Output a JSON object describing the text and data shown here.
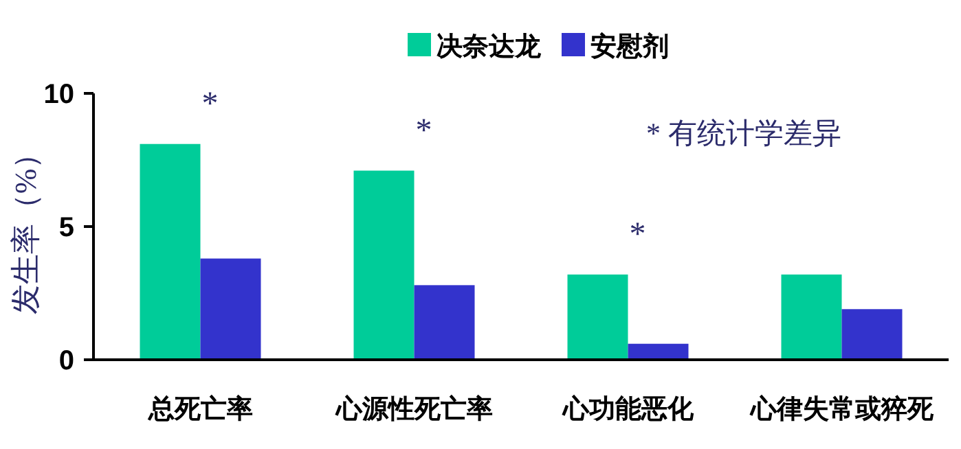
{
  "chart_data": {
    "type": "bar",
    "ylabel": "发生率（%）",
    "categories": [
      "总死亡率",
      "心源性死亡率",
      "心功能恶化",
      "心律失常或猝死"
    ],
    "series": [
      {
        "name": "决奈达龙",
        "color": "#00cc99",
        "values": [
          8.1,
          7.1,
          3.2,
          3.2
        ]
      },
      {
        "name": "安慰剂",
        "color": "#3333cc",
        "values": [
          3.8,
          2.8,
          0.6,
          1.9
        ]
      }
    ],
    "ylim": [
      0,
      10
    ],
    "yticks": [
      0,
      5,
      10
    ],
    "grid": false,
    "legend": "top",
    "annotations": [
      "*",
      "*",
      "*",
      "* 有统计学差异"
    ]
  }
}
